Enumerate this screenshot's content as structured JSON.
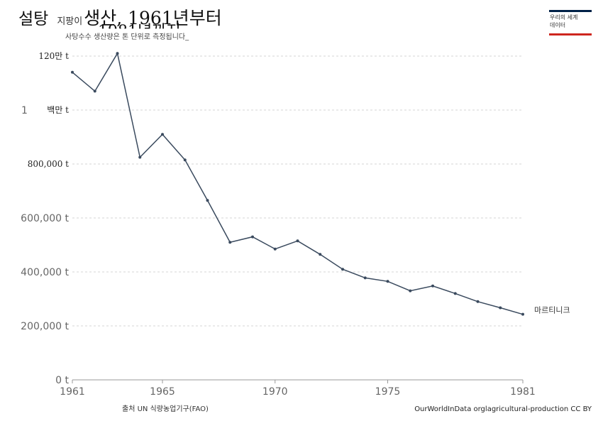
{
  "header": {
    "title_part1": "설탕",
    "title_part2": "지팡이",
    "title_part3": "생산, 1961년부터",
    "title_part4": "1981년까지",
    "subtitle": "사탕수수 생산량은 톤 단위로 측정됩니다_"
  },
  "logo": {
    "line1": "우리의 세계",
    "line2": "데이터",
    "color_top": "#002147",
    "color_bottom": "#ce261e"
  },
  "footer": {
    "source": "출처 UN 식량농업기구(FAO)",
    "credit": "OurWorldInData orglagricultural-production CC BY"
  },
  "chart_data": {
    "type": "line",
    "title": "설탕 지팡이생산, 1961년부터 1981년까지",
    "xlabel": "",
    "ylabel": "",
    "xlim": [
      1961,
      1981
    ],
    "ylim": [
      0,
      1200000
    ],
    "grid": true,
    "y_ticks": [
      {
        "value": 0,
        "label": "0 t"
      },
      {
        "value": 200000,
        "label": "200,000 t"
      },
      {
        "value": 400000,
        "label": "400,000 t"
      },
      {
        "value": 600000,
        "label": "600,000 t"
      },
      {
        "value": 800000,
        "label": "800,000 t"
      },
      {
        "value": 1000000,
        "label": "백만 t",
        "prefix": "1"
      },
      {
        "value": 1200000,
        "label": "120만 t"
      }
    ],
    "x_ticks": [
      1961,
      1965,
      1970,
      1975,
      1981
    ],
    "series": [
      {
        "name": "마르티니크",
        "color": "#3a4a5e",
        "x": [
          1961,
          1962,
          1963,
          1964,
          1965,
          1966,
          1967,
          1968,
          1969,
          1970,
          1971,
          1972,
          1973,
          1974,
          1975,
          1976,
          1977,
          1978,
          1979,
          1980,
          1981
        ],
        "values": [
          1140000,
          1070000,
          1210000,
          825000,
          910000,
          815000,
          665000,
          510000,
          530000,
          485000,
          515000,
          465000,
          410000,
          378000,
          365000,
          330000,
          348000,
          320000,
          290000,
          267000,
          243000
        ]
      }
    ]
  }
}
